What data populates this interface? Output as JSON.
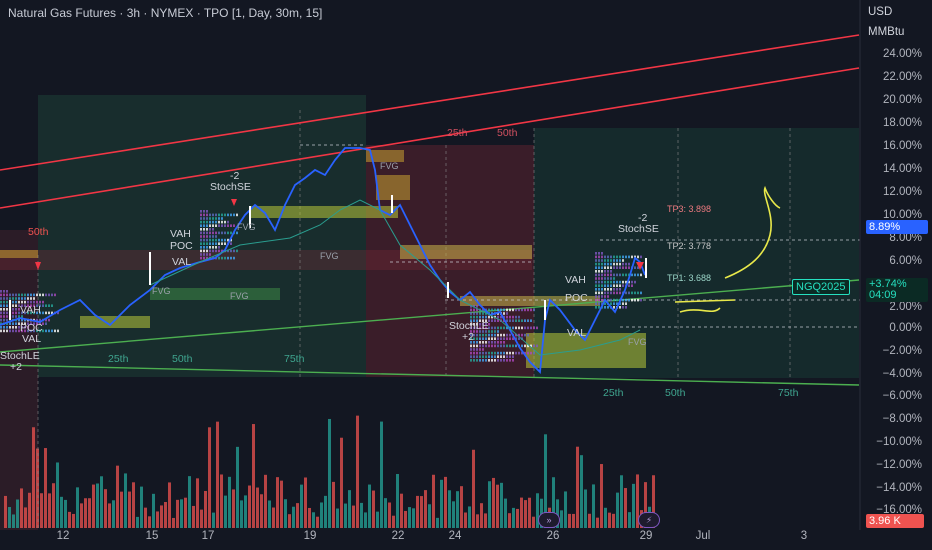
{
  "header": {
    "title": "Natural Gas Futures · 3h · NYMEX · TPO [1, Day, 30m, 15]",
    "currency": "USD",
    "unit": "MMBtu"
  },
  "y_axis": {
    "labels": [
      "24.00%",
      "22.00%",
      "20.00%",
      "18.00%",
      "16.00%",
      "14.00%",
      "12.00%",
      "10.00%",
      "8.00%",
      "6.00%",
      "4.00%",
      "2.00%",
      "0.00%",
      "−2.00%",
      "−4.00%",
      "−6.00%",
      "−8.00%",
      "−10.00%",
      "−12.00%",
      "−14.00%",
      "−16.00%"
    ]
  },
  "x_axis": {
    "labels": [
      "12",
      "15",
      "17",
      "19",
      "22",
      "24",
      "26",
      "29",
      "Jul",
      "3"
    ]
  },
  "tags": {
    "pct_current": "8.89%",
    "symbol": "NGQ2025",
    "change": "+3.74%",
    "countdown": "04:09",
    "volume": "3.96 K"
  },
  "annotations": {
    "stoch_se_1": "StochSE",
    "stoch_se_1_qty": "-2",
    "stoch_se_2": "StochSE",
    "stoch_se_2_qty": "-2",
    "stoch_le_1": "StochLE",
    "stoch_le_1_qty": "+2",
    "stoch_le_2": "StochLE",
    "stoch_le_2_qty": "+2",
    "vah": "VAH",
    "poc": "POC",
    "val": "VAL",
    "fvg": "FVG",
    "tp3": "TP3: 3.898",
    "tp2": "TP2: 3.778",
    "tp1": "TP1: 3.688",
    "pct_25": "25th",
    "pct_50": "50th",
    "pct_75": "75th"
  },
  "colors": {
    "background": "#131722",
    "price_line": "#2962ff",
    "red_trend": "#f23645",
    "green_trend": "#4caf50",
    "volume_up": "#26a69a",
    "volume_down": "#ef5350",
    "drawing": "#e8e84a",
    "fvg": "#c8b44a"
  },
  "icons": [
    "double-arrow-icon",
    "lightning-icon"
  ]
}
